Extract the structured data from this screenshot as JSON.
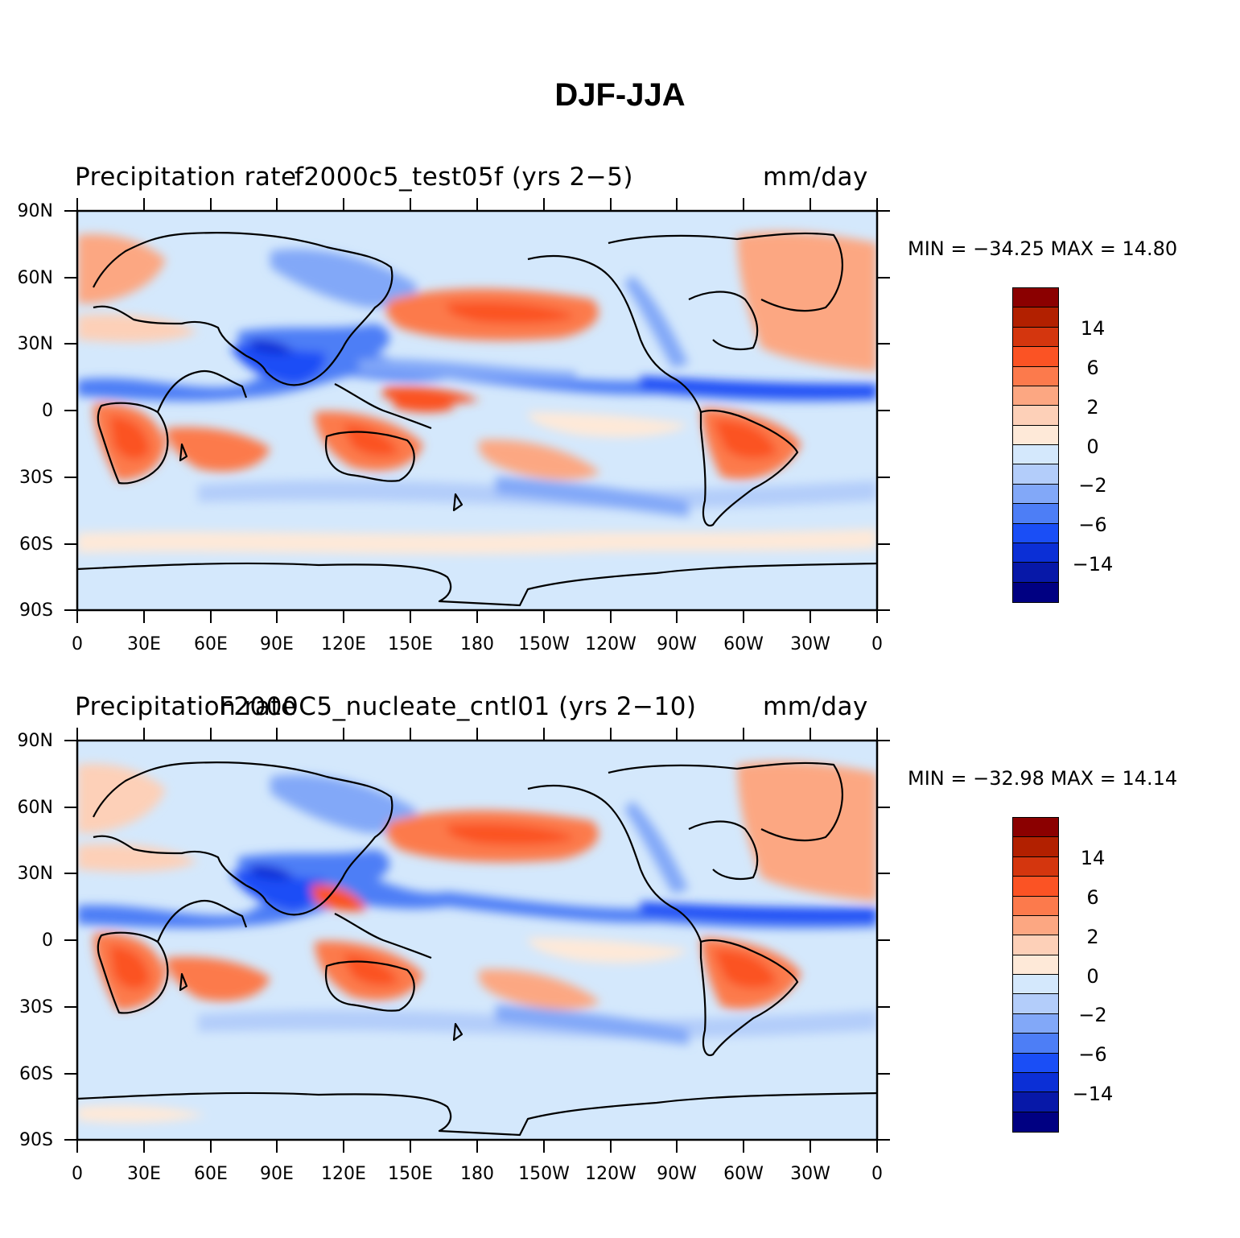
{
  "title": "DJF-JJA",
  "lat_labels": [
    "90N",
    "60N",
    "30N",
    "0",
    "30S",
    "60S",
    "90S"
  ],
  "lon_labels": [
    "0",
    "30E",
    "60E",
    "90E",
    "120E",
    "150E",
    "180",
    "150W",
    "120W",
    "90W",
    "60W",
    "30W",
    "0"
  ],
  "colorbar": {
    "colors": [
      "#8b0000",
      "#b22000",
      "#d4360e",
      "#fb5324",
      "#fc7a4c",
      "#fca782",
      "#fdd0b8",
      "#fee9d8",
      "#d4e8fc",
      "#b3cdfa",
      "#82a8f8",
      "#4d7ef6",
      "#1a4ef6",
      "#0b2fd6",
      "#0718a8",
      "#000082"
    ],
    "labels": [
      "14",
      "6",
      "2",
      "0",
      "−2",
      "−6",
      "−14"
    ]
  },
  "panels": [
    {
      "left_title": "Precipitation rate",
      "center_title": "f2000c5_test05f (yrs 2−5)",
      "right_title": "mm/day",
      "stats": "MIN = −34.25  MAX =   14.80"
    },
    {
      "left_title": "Precipitation rate",
      "center_title": "F2000C5_nucleate_cntl01 (yrs 2−10)",
      "right_title": "mm/day",
      "stats": "MIN = −32.98  MAX =   14.14"
    }
  ]
}
